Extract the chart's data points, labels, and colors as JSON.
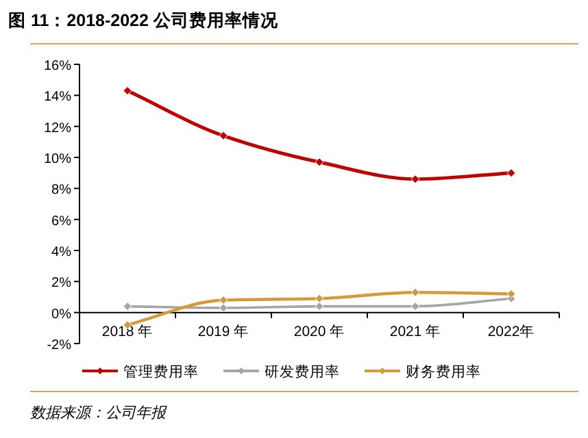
{
  "chart_data": {
    "type": "line",
    "title": "图 11：2018-2022 公司费用率情况",
    "categories": [
      "2018 年",
      "2019 年",
      "2020 年",
      "2021 年",
      "2022年"
    ],
    "series": [
      {
        "name": "管理费用率",
        "color": "#c00000",
        "values": [
          14.3,
          11.4,
          9.7,
          8.6,
          9.0
        ]
      },
      {
        "name": "研发费用率",
        "color": "#a6a6a6",
        "values": [
          0.4,
          0.3,
          0.4,
          0.4,
          0.9
        ]
      },
      {
        "name": "财务费用率",
        "color": "#d49a3c",
        "values": [
          -0.8,
          0.8,
          0.9,
          1.3,
          1.2
        ]
      }
    ],
    "ylim": [
      -2,
      16
    ],
    "yticks": [
      {
        "value": -2,
        "label": "-2%"
      },
      {
        "value": 0,
        "label": "0%"
      },
      {
        "value": 2,
        "label": "2%"
      },
      {
        "value": 4,
        "label": "4%"
      },
      {
        "value": 6,
        "label": "6%"
      },
      {
        "value": 8,
        "label": "8%"
      },
      {
        "value": 10,
        "label": "10%"
      },
      {
        "value": 12,
        "label": "12%"
      },
      {
        "value": 14,
        "label": "14%"
      },
      {
        "value": 16,
        "label": "16%"
      }
    ],
    "grid": false,
    "legend": "bottom",
    "marker": "diamond",
    "line_style": "solid",
    "annotations": [
      "数据来源：公司年报"
    ]
  }
}
